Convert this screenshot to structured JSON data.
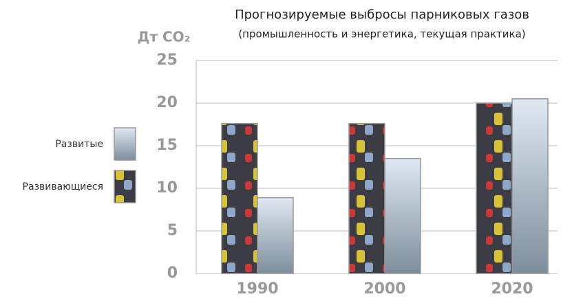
{
  "chart_data": {
    "type": "bar",
    "title": "Прогнозируемые выбросы парниковых газов",
    "subtitle": "(промышленность и энергетика, текущая практика)",
    "y_label": "Дт CO₂",
    "categories": [
      "1990",
      "2000",
      "2020"
    ],
    "series": [
      {
        "name": "Развитые",
        "color": "#9fb0c2",
        "values": [
          8.9,
          13.5,
          20.5
        ]
      },
      {
        "name": "Развивающиеся",
        "color": "#3c3d44",
        "values": [
          17.6,
          17.6,
          20
        ]
      }
    ],
    "ylim": [
      0,
      25
    ],
    "yticks": [
      0,
      5,
      10,
      15,
      20,
      25
    ],
    "grid": true,
    "legend": "left"
  }
}
